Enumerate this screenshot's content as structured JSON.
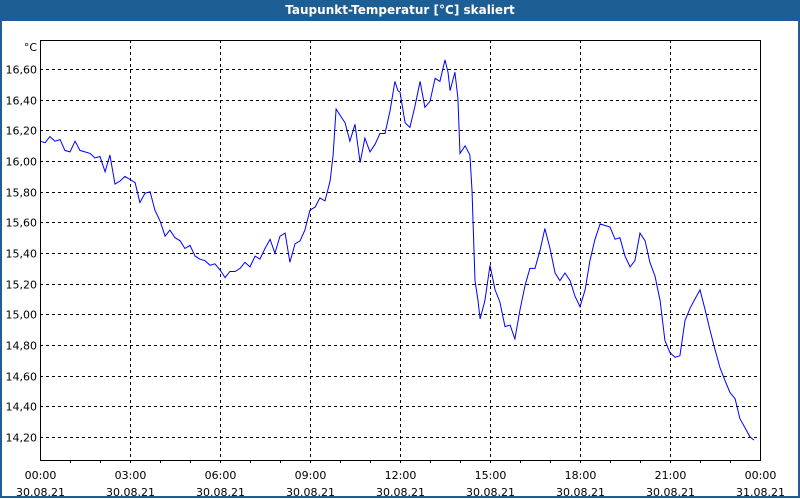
{
  "window": {
    "title": "Taupunkt-Temperatur [°C] skaliert"
  },
  "colors": {
    "titlebar": "#1d5e95",
    "line": "#0000ff",
    "grid": "#000000"
  },
  "chart_data": {
    "type": "line",
    "title": "Taupunkt-Temperatur [°C] skaliert",
    "ylabel": "°C",
    "xlabel": "",
    "ylim": [
      14.05,
      16.79
    ],
    "xlim": [
      0,
      24
    ],
    "grid": true,
    "yticks": [
      {
        "value": 16.6,
        "label": "16,60"
      },
      {
        "value": 16.4,
        "label": "16,40"
      },
      {
        "value": 16.2,
        "label": "16,20"
      },
      {
        "value": 16.0,
        "label": "16,00"
      },
      {
        "value": 15.8,
        "label": "15,80"
      },
      {
        "value": 15.6,
        "label": "15,60"
      },
      {
        "value": 15.4,
        "label": "15,40"
      },
      {
        "value": 15.2,
        "label": "15,20"
      },
      {
        "value": 15.0,
        "label": "15,00"
      },
      {
        "value": 14.8,
        "label": "14,80"
      },
      {
        "value": 14.6,
        "label": "14,60"
      },
      {
        "value": 14.4,
        "label": "14,40"
      },
      {
        "value": 14.2,
        "label": "14,20"
      }
    ],
    "xticks": [
      {
        "value": 0,
        "time": "00:00",
        "date": "30.08.21"
      },
      {
        "value": 3,
        "time": "03:00",
        "date": "30.08.21"
      },
      {
        "value": 6,
        "time": "06:00",
        "date": "30.08.21"
      },
      {
        "value": 9,
        "time": "09:00",
        "date": "30.08.21"
      },
      {
        "value": 12,
        "time": "12:00",
        "date": "30.08.21"
      },
      {
        "value": 15,
        "time": "15:00",
        "date": "30.08.21"
      },
      {
        "value": 18,
        "time": "18:00",
        "date": "30.08.21"
      },
      {
        "value": 21,
        "time": "21:00",
        "date": "30.08.21"
      },
      {
        "value": 24,
        "time": "00:00",
        "date": "31.08.21"
      }
    ],
    "series": [
      {
        "name": "Taupunkt-Temperatur",
        "points": [
          [
            0,
            16.13
          ],
          [
            0.17,
            16.12
          ],
          [
            0.33,
            16.16
          ],
          [
            0.5,
            16.13
          ],
          [
            0.67,
            16.14
          ],
          [
            0.83,
            16.07
          ],
          [
            1,
            16.06
          ],
          [
            1.17,
            16.13
          ],
          [
            1.33,
            16.07
          ],
          [
            1.5,
            16.06
          ],
          [
            1.67,
            16.05
          ],
          [
            1.83,
            16.02
          ],
          [
            2,
            16.03
          ],
          [
            2.17,
            15.93
          ],
          [
            2.33,
            16.04
          ],
          [
            2.5,
            15.85
          ],
          [
            2.67,
            15.87
          ],
          [
            2.83,
            15.9
          ],
          [
            3,
            15.88
          ],
          [
            3.17,
            15.86
          ],
          [
            3.33,
            15.73
          ],
          [
            3.5,
            15.79
          ],
          [
            3.67,
            15.8
          ],
          [
            3.83,
            15.68
          ],
          [
            4,
            15.61
          ],
          [
            4.17,
            15.51
          ],
          [
            4.33,
            15.55
          ],
          [
            4.5,
            15.5
          ],
          [
            4.67,
            15.48
          ],
          [
            4.83,
            15.43
          ],
          [
            5,
            15.45
          ],
          [
            5.17,
            15.38
          ],
          [
            5.33,
            15.36
          ],
          [
            5.5,
            15.35
          ],
          [
            5.67,
            15.32
          ],
          [
            5.83,
            15.33
          ],
          [
            6,
            15.29
          ],
          [
            6.17,
            15.24
          ],
          [
            6.33,
            15.28
          ],
          [
            6.5,
            15.28
          ],
          [
            6.67,
            15.3
          ],
          [
            6.83,
            15.34
          ],
          [
            7,
            15.31
          ],
          [
            7.17,
            15.38
          ],
          [
            7.33,
            15.36
          ],
          [
            7.5,
            15.43
          ],
          [
            7.67,
            15.49
          ],
          [
            7.83,
            15.4
          ],
          [
            8,
            15.51
          ],
          [
            8.17,
            15.53
          ],
          [
            8.33,
            15.34
          ],
          [
            8.5,
            15.46
          ],
          [
            8.67,
            15.48
          ],
          [
            8.83,
            15.55
          ],
          [
            9,
            15.68
          ],
          [
            9.17,
            15.7
          ],
          [
            9.33,
            15.76
          ],
          [
            9.5,
            15.74
          ],
          [
            9.67,
            15.87
          ],
          [
            9.77,
            16.04
          ],
          [
            9.87,
            16.34
          ],
          [
            10,
            16.3
          ],
          [
            10.17,
            16.25
          ],
          [
            10.33,
            16.13
          ],
          [
            10.5,
            16.24
          ],
          [
            10.67,
            15.99
          ],
          [
            10.83,
            16.15
          ],
          [
            11,
            16.06
          ],
          [
            11.17,
            16.11
          ],
          [
            11.33,
            16.18
          ],
          [
            11.5,
            16.18
          ],
          [
            11.67,
            16.33
          ],
          [
            11.83,
            16.52
          ],
          [
            11.93,
            16.46
          ],
          [
            12,
            16.45
          ],
          [
            12.17,
            16.25
          ],
          [
            12.33,
            16.22
          ],
          [
            12.5,
            16.36
          ],
          [
            12.67,
            16.52
          ],
          [
            12.83,
            16.35
          ],
          [
            13,
            16.39
          ],
          [
            13.17,
            16.54
          ],
          [
            13.33,
            16.52
          ],
          [
            13.5,
            16.66
          ],
          [
            13.6,
            16.58
          ],
          [
            13.67,
            16.46
          ],
          [
            13.83,
            16.58
          ],
          [
            13.93,
            16.41
          ],
          [
            14,
            16.05
          ],
          [
            14.17,
            16.1
          ],
          [
            14.33,
            16.04
          ],
          [
            14.4,
            15.81
          ],
          [
            14.5,
            15.22
          ],
          [
            14.6,
            15.09
          ],
          [
            14.67,
            14.97
          ],
          [
            14.83,
            15.09
          ],
          [
            15,
            15.32
          ],
          [
            15.17,
            15.16
          ],
          [
            15.33,
            15.08
          ],
          [
            15.5,
            14.92
          ],
          [
            15.67,
            14.93
          ],
          [
            15.83,
            14.84
          ],
          [
            16,
            15.03
          ],
          [
            16.17,
            15.19
          ],
          [
            16.33,
            15.3
          ],
          [
            16.5,
            15.3
          ],
          [
            16.67,
            15.42
          ],
          [
            16.83,
            15.56
          ],
          [
            17,
            15.43
          ],
          [
            17.17,
            15.27
          ],
          [
            17.33,
            15.22
          ],
          [
            17.5,
            15.27
          ],
          [
            17.67,
            15.22
          ],
          [
            17.83,
            15.12
          ],
          [
            18,
            15.05
          ],
          [
            18.17,
            15.16
          ],
          [
            18.33,
            15.35
          ],
          [
            18.5,
            15.49
          ],
          [
            18.67,
            15.59
          ],
          [
            18.83,
            15.58
          ],
          [
            19,
            15.57
          ],
          [
            19.17,
            15.49
          ],
          [
            19.33,
            15.5
          ],
          [
            19.5,
            15.38
          ],
          [
            19.67,
            15.31
          ],
          [
            19.83,
            15.35
          ],
          [
            20,
            15.53
          ],
          [
            20.17,
            15.48
          ],
          [
            20.33,
            15.34
          ],
          [
            20.5,
            15.25
          ],
          [
            20.67,
            15.09
          ],
          [
            20.83,
            14.83
          ],
          [
            21,
            14.75
          ],
          [
            21.17,
            14.72
          ],
          [
            21.33,
            14.73
          ],
          [
            21.5,
            14.96
          ],
          [
            21.67,
            15.04
          ],
          [
            21.83,
            15.1
          ],
          [
            22,
            15.16
          ],
          [
            22.17,
            15.03
          ],
          [
            22.33,
            14.9
          ],
          [
            22.5,
            14.77
          ],
          [
            22.67,
            14.65
          ],
          [
            22.83,
            14.57
          ],
          [
            23,
            14.49
          ],
          [
            23.17,
            14.45
          ],
          [
            23.33,
            14.32
          ],
          [
            23.5,
            14.26
          ],
          [
            23.67,
            14.2
          ],
          [
            23.8,
            14.18
          ]
        ]
      }
    ]
  }
}
